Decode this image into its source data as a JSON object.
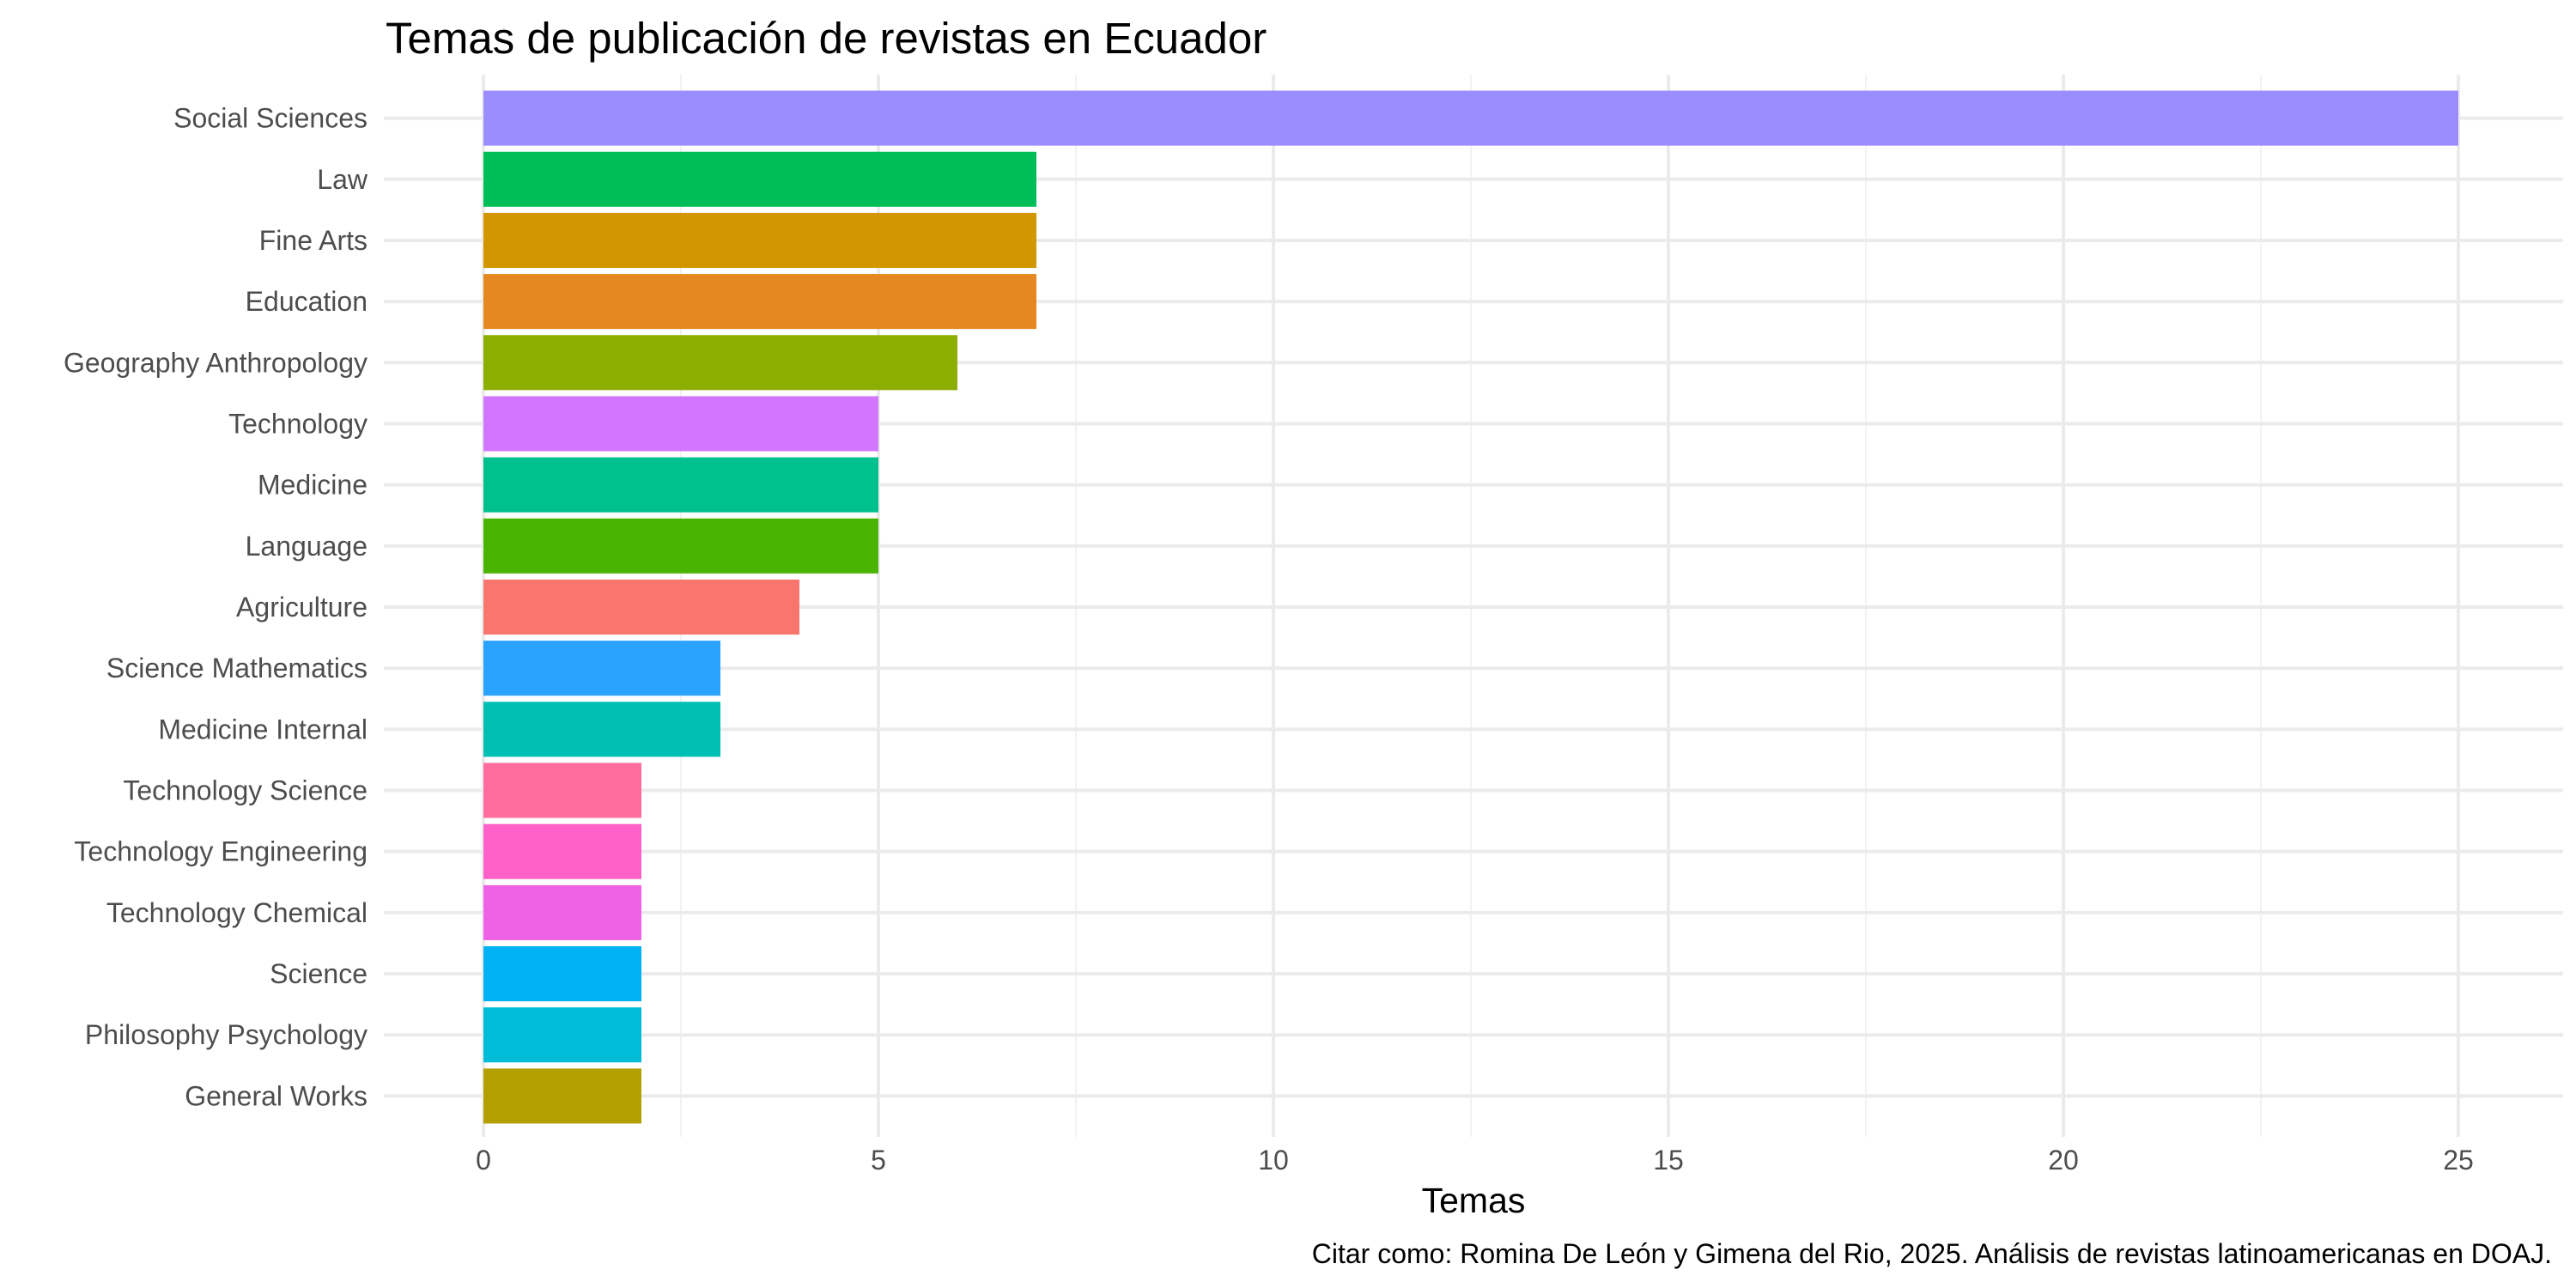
{
  "chart_data": {
    "type": "bar",
    "orientation": "horizontal",
    "title": "Temas de publicación de revistas en Ecuador",
    "xlabel": "Temas",
    "ylabel": "",
    "caption": "Citar como: Romina De León y Gimena del Rio, 2025. Análisis de revistas latinoamericanas en DOAJ.",
    "xlim": [
      0,
      26
    ],
    "x_ticks": [
      0,
      5,
      10,
      15,
      20,
      25
    ],
    "grid": true,
    "legend": "none",
    "categories": [
      "Social Sciences",
      "Law",
      "Fine Arts",
      "Education",
      "Geography Anthropology",
      "Technology",
      "Medicine",
      "Language",
      "Agriculture",
      "Science Mathematics",
      "Medicine Internal",
      "Technology Science",
      "Technology Engineering",
      "Technology Chemical",
      "Science",
      "Philosophy Psychology",
      "General Works"
    ],
    "values": [
      25,
      7,
      7,
      7,
      6,
      5,
      5,
      5,
      4,
      3,
      3,
      2,
      2,
      2,
      2,
      2,
      2
    ],
    "colors": [
      "#9C8DFF",
      "#00BE57",
      "#D29600",
      "#E58822",
      "#8CAE00",
      "#D276FF",
      "#00C08D",
      "#49B500",
      "#F8766D",
      "#29A3FF",
      "#00C0B3",
      "#FF6C9D",
      "#FF61C8",
      "#F062E5",
      "#00B2F3",
      "#00BCD6",
      "#B3A000"
    ]
  }
}
